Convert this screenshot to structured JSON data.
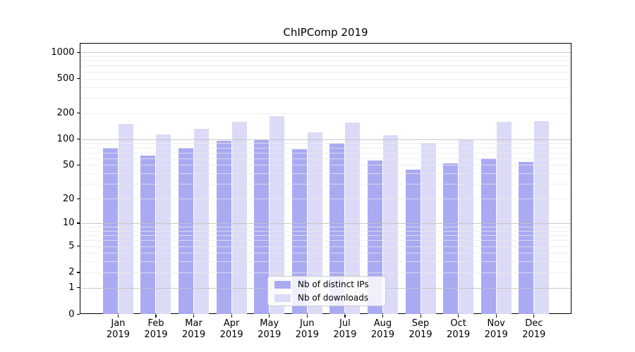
{
  "chart_data": {
    "type": "bar",
    "title": "ChIPComp 2019",
    "categories": [
      "Jan 2019",
      "Feb 2019",
      "Mar 2019",
      "Apr 2019",
      "May 2019",
      "Jun 2019",
      "Jul 2019",
      "Aug 2019",
      "Sep 2019",
      "Oct 2019",
      "Nov 2019",
      "Dec 2019"
    ],
    "series": [
      {
        "name": "Nb of distinct IPs",
        "color": "#a9aaf2",
        "values": [
          80,
          64,
          80,
          95,
          98,
          77,
          89,
          57,
          44,
          52,
          60,
          54
        ]
      },
      {
        "name": "Nb of downloads",
        "color": "#dbdbf8",
        "values": [
          151,
          114,
          132,
          160,
          186,
          119,
          156,
          112,
          90,
          98,
          158,
          161
        ]
      }
    ],
    "xlabel": "",
    "ylabel": "",
    "yscale": "log1p",
    "ylim": [
      0,
      1070
    ],
    "yticks": [
      0,
      1,
      2,
      5,
      10,
      20,
      50,
      100,
      200,
      500,
      1000
    ],
    "grid": true,
    "legend_position": "lower center"
  },
  "style_colors": {
    "grid_major": "#c2c2c2",
    "grid_minor": "#e9e9e9",
    "axis": "#000000",
    "background": "#ffffff"
  }
}
